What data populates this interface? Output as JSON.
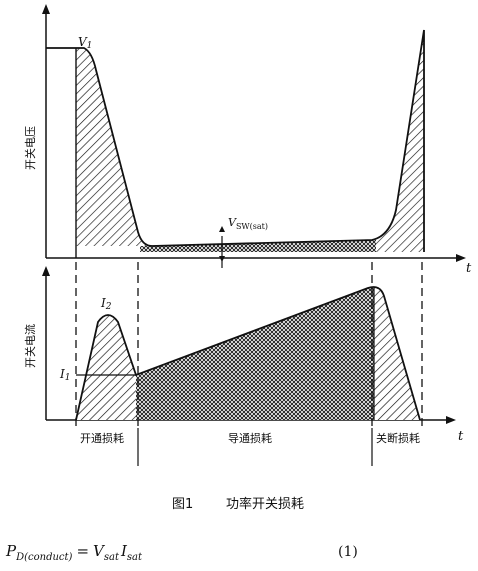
{
  "upper_panel": {
    "y_axis_label": "开关电压",
    "x_axis_label": "t",
    "peak_label": "V",
    "peak_label_sub": "1",
    "sat_label": "V",
    "sat_label_sub": "SW(sat)"
  },
  "lower_panel": {
    "y_axis_label": "开关电流",
    "x_axis_label": "t",
    "peak_label": "I",
    "peak_label_sub": "2",
    "level_label": "I",
    "level_label_sub": "1"
  },
  "segments": {
    "turn_on": "开通损耗",
    "conduction": "导通损耗",
    "turn_off": "关断损耗"
  },
  "caption": {
    "number": "图1",
    "title": "功率开关损耗"
  },
  "equation": {
    "lhs_main": "P",
    "lhs_sub": "D(conduct)",
    "equals": "=",
    "v_main": "V",
    "v_sub": "sat",
    "i_main": "I",
    "i_sub": "sat",
    "number": "(1)"
  },
  "colors": {
    "ink": "#111111",
    "background": "#ffffff"
  }
}
